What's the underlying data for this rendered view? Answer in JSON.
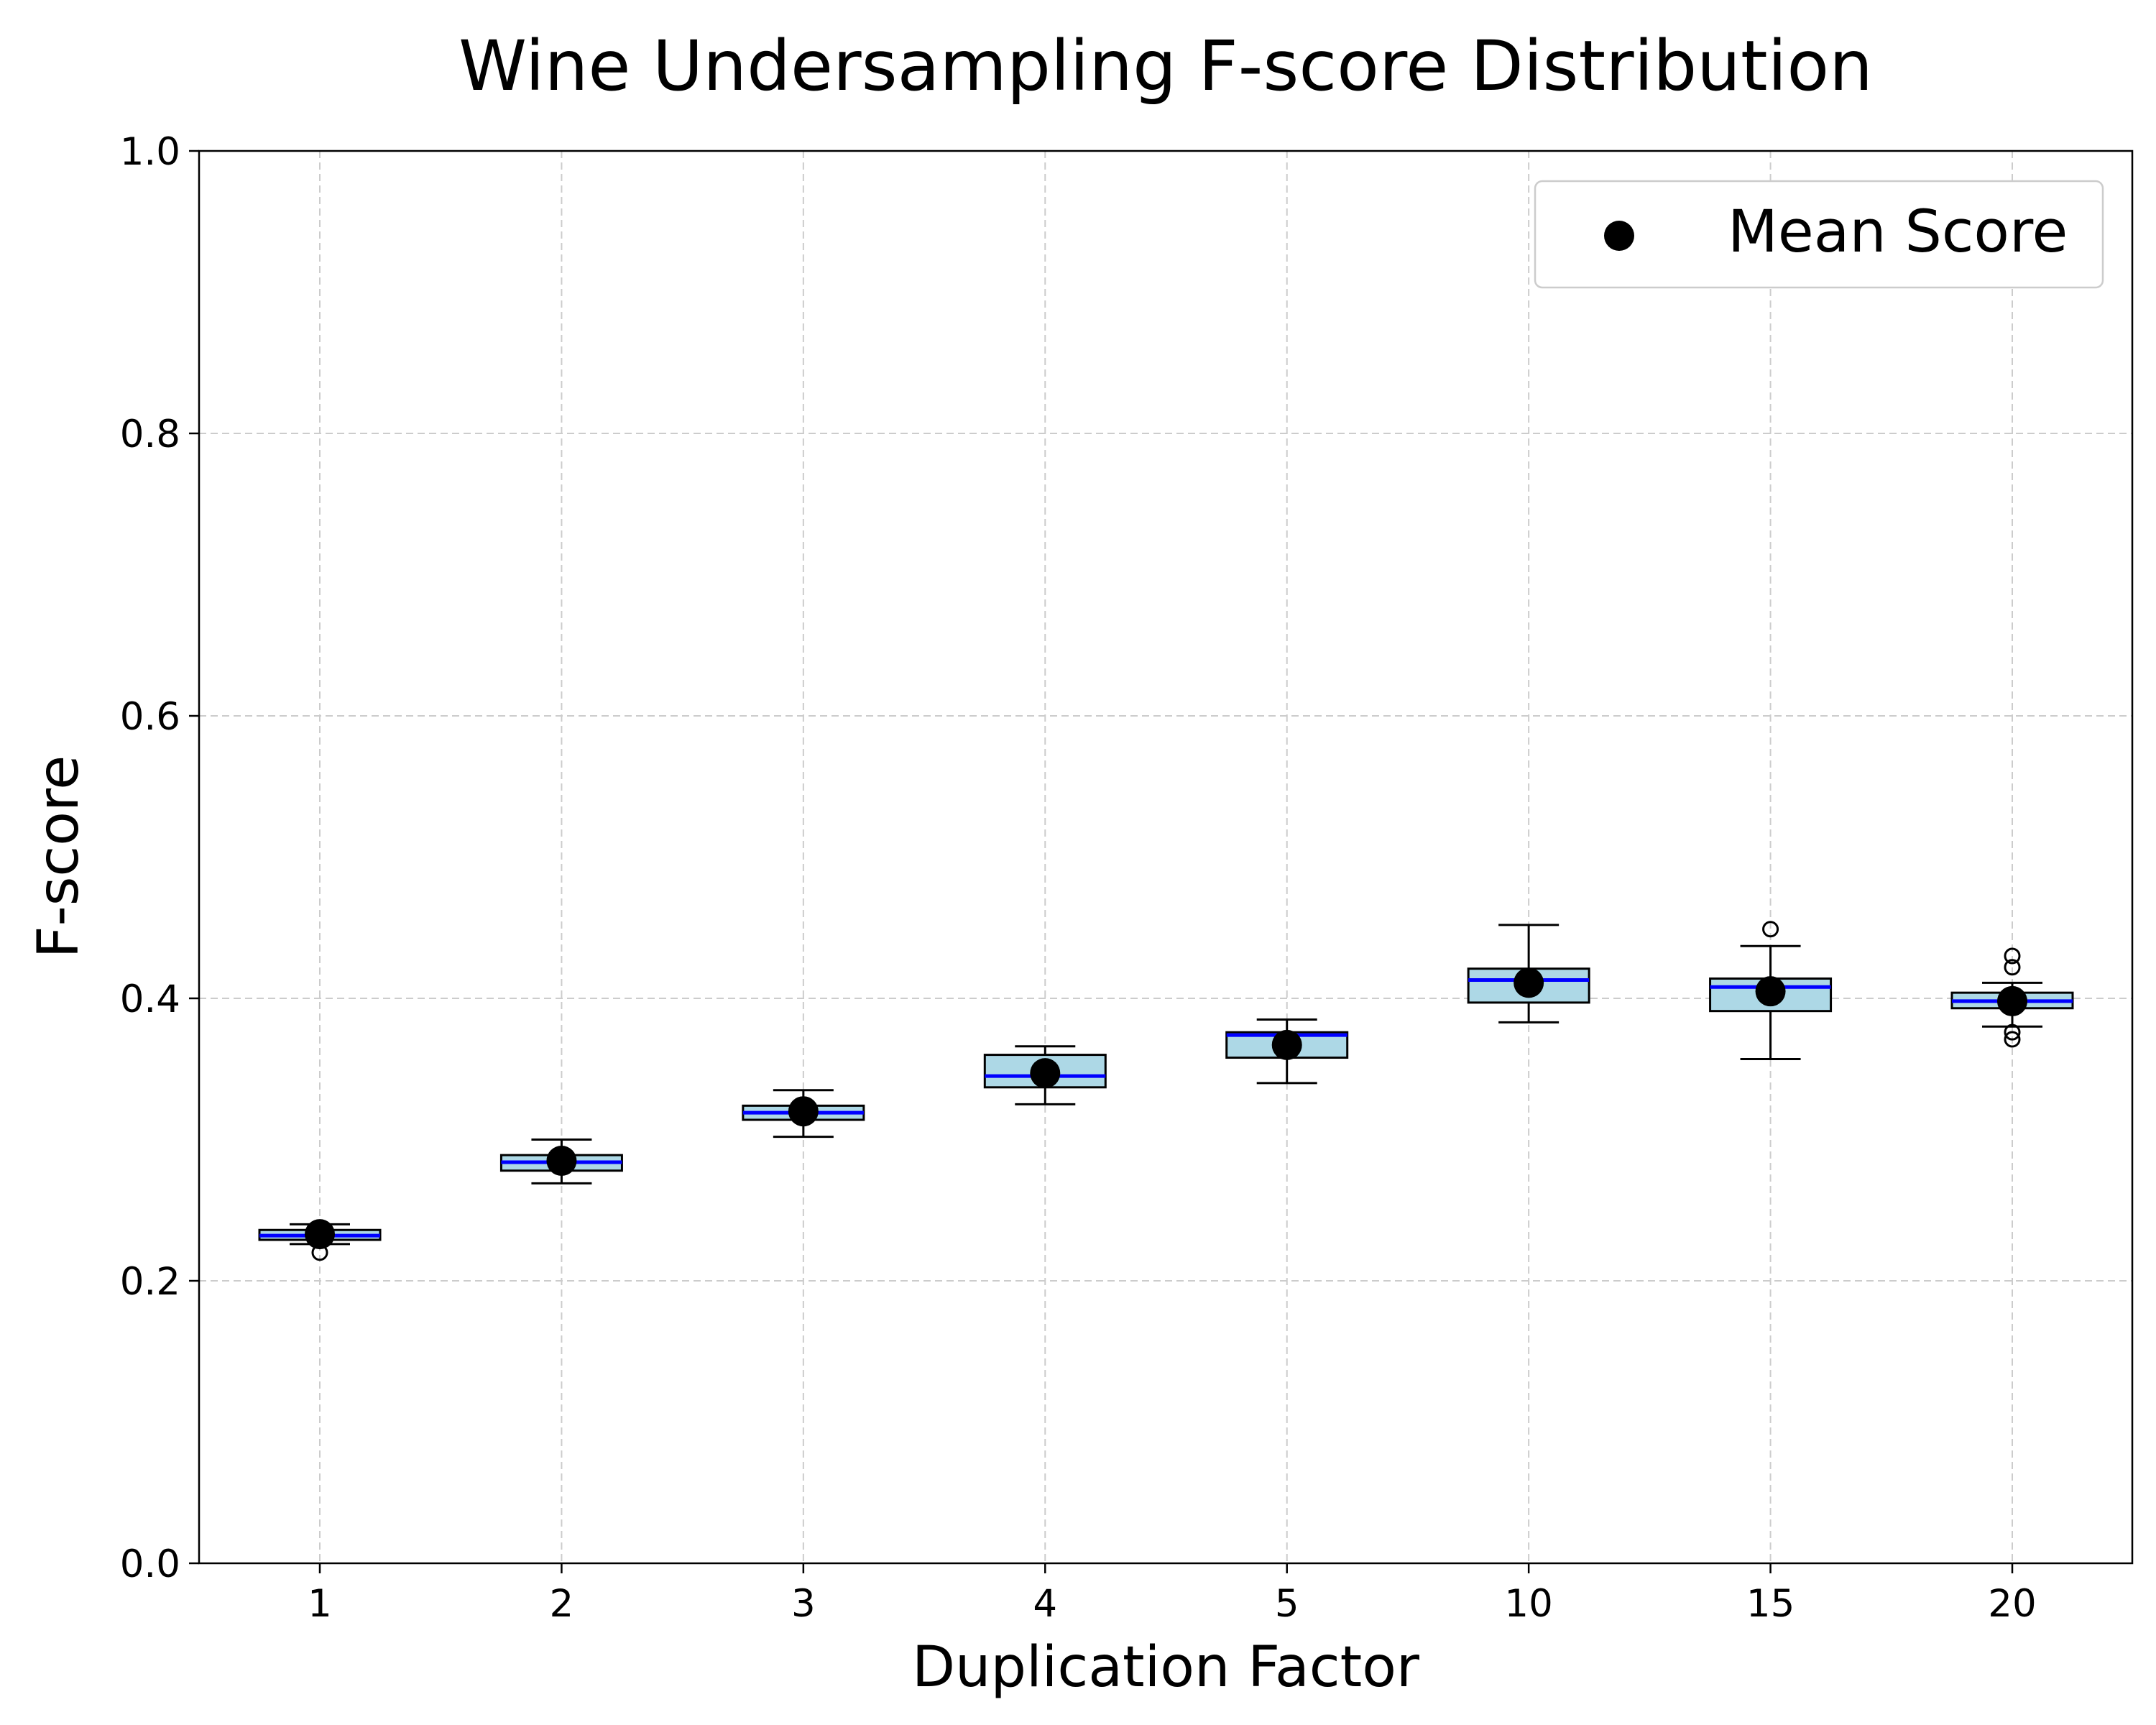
{
  "chart_data": {
    "type": "box",
    "title": "Wine Undersampling F-score Distribution",
    "xlabel": "Duplication Factor",
    "ylabel": "F-score",
    "ylim": [
      0.0,
      1.0
    ],
    "yticks": [
      "0.0",
      "0.2",
      "0.4",
      "0.6",
      "0.8",
      "1.0"
    ],
    "grid": true,
    "legend": {
      "placement": "top-right",
      "entries": [
        "Mean Score"
      ]
    },
    "colors": {
      "box_fill": "#add8e6",
      "median": "#0000ff",
      "mean_marker": "#000000",
      "grid": "#cccccc"
    },
    "categories": [
      "1",
      "2",
      "3",
      "4",
      "5",
      "10",
      "15",
      "20"
    ],
    "boxes": [
      {
        "category": "1",
        "whisker_low": 0.226,
        "q1": 0.229,
        "median": 0.232,
        "q3": 0.236,
        "whisker_high": 0.24,
        "mean": 0.233,
        "outliers": [
          0.22
        ]
      },
      {
        "category": "2",
        "whisker_low": 0.269,
        "q1": 0.278,
        "median": 0.284,
        "q3": 0.289,
        "whisker_high": 0.3,
        "mean": 0.285,
        "outliers": []
      },
      {
        "category": "3",
        "whisker_low": 0.302,
        "q1": 0.314,
        "median": 0.319,
        "q3": 0.324,
        "whisker_high": 0.335,
        "mean": 0.32,
        "outliers": []
      },
      {
        "category": "4",
        "whisker_low": 0.325,
        "q1": 0.337,
        "median": 0.345,
        "q3": 0.36,
        "whisker_high": 0.366,
        "mean": 0.347,
        "outliers": []
      },
      {
        "category": "5",
        "whisker_low": 0.34,
        "q1": 0.358,
        "median": 0.374,
        "q3": 0.376,
        "whisker_high": 0.385,
        "mean": 0.367,
        "outliers": []
      },
      {
        "category": "10",
        "whisker_low": 0.383,
        "q1": 0.397,
        "median": 0.413,
        "q3": 0.421,
        "whisker_high": 0.452,
        "mean": 0.411,
        "outliers": []
      },
      {
        "category": "15",
        "whisker_low": 0.357,
        "q1": 0.391,
        "median": 0.408,
        "q3": 0.414,
        "whisker_high": 0.437,
        "mean": 0.405,
        "outliers": [
          0.449
        ]
      },
      {
        "category": "20",
        "whisker_low": 0.38,
        "q1": 0.393,
        "median": 0.398,
        "q3": 0.404,
        "whisker_high": 0.411,
        "mean": 0.398,
        "outliers": [
          0.43,
          0.422,
          0.376,
          0.371
        ]
      }
    ]
  }
}
